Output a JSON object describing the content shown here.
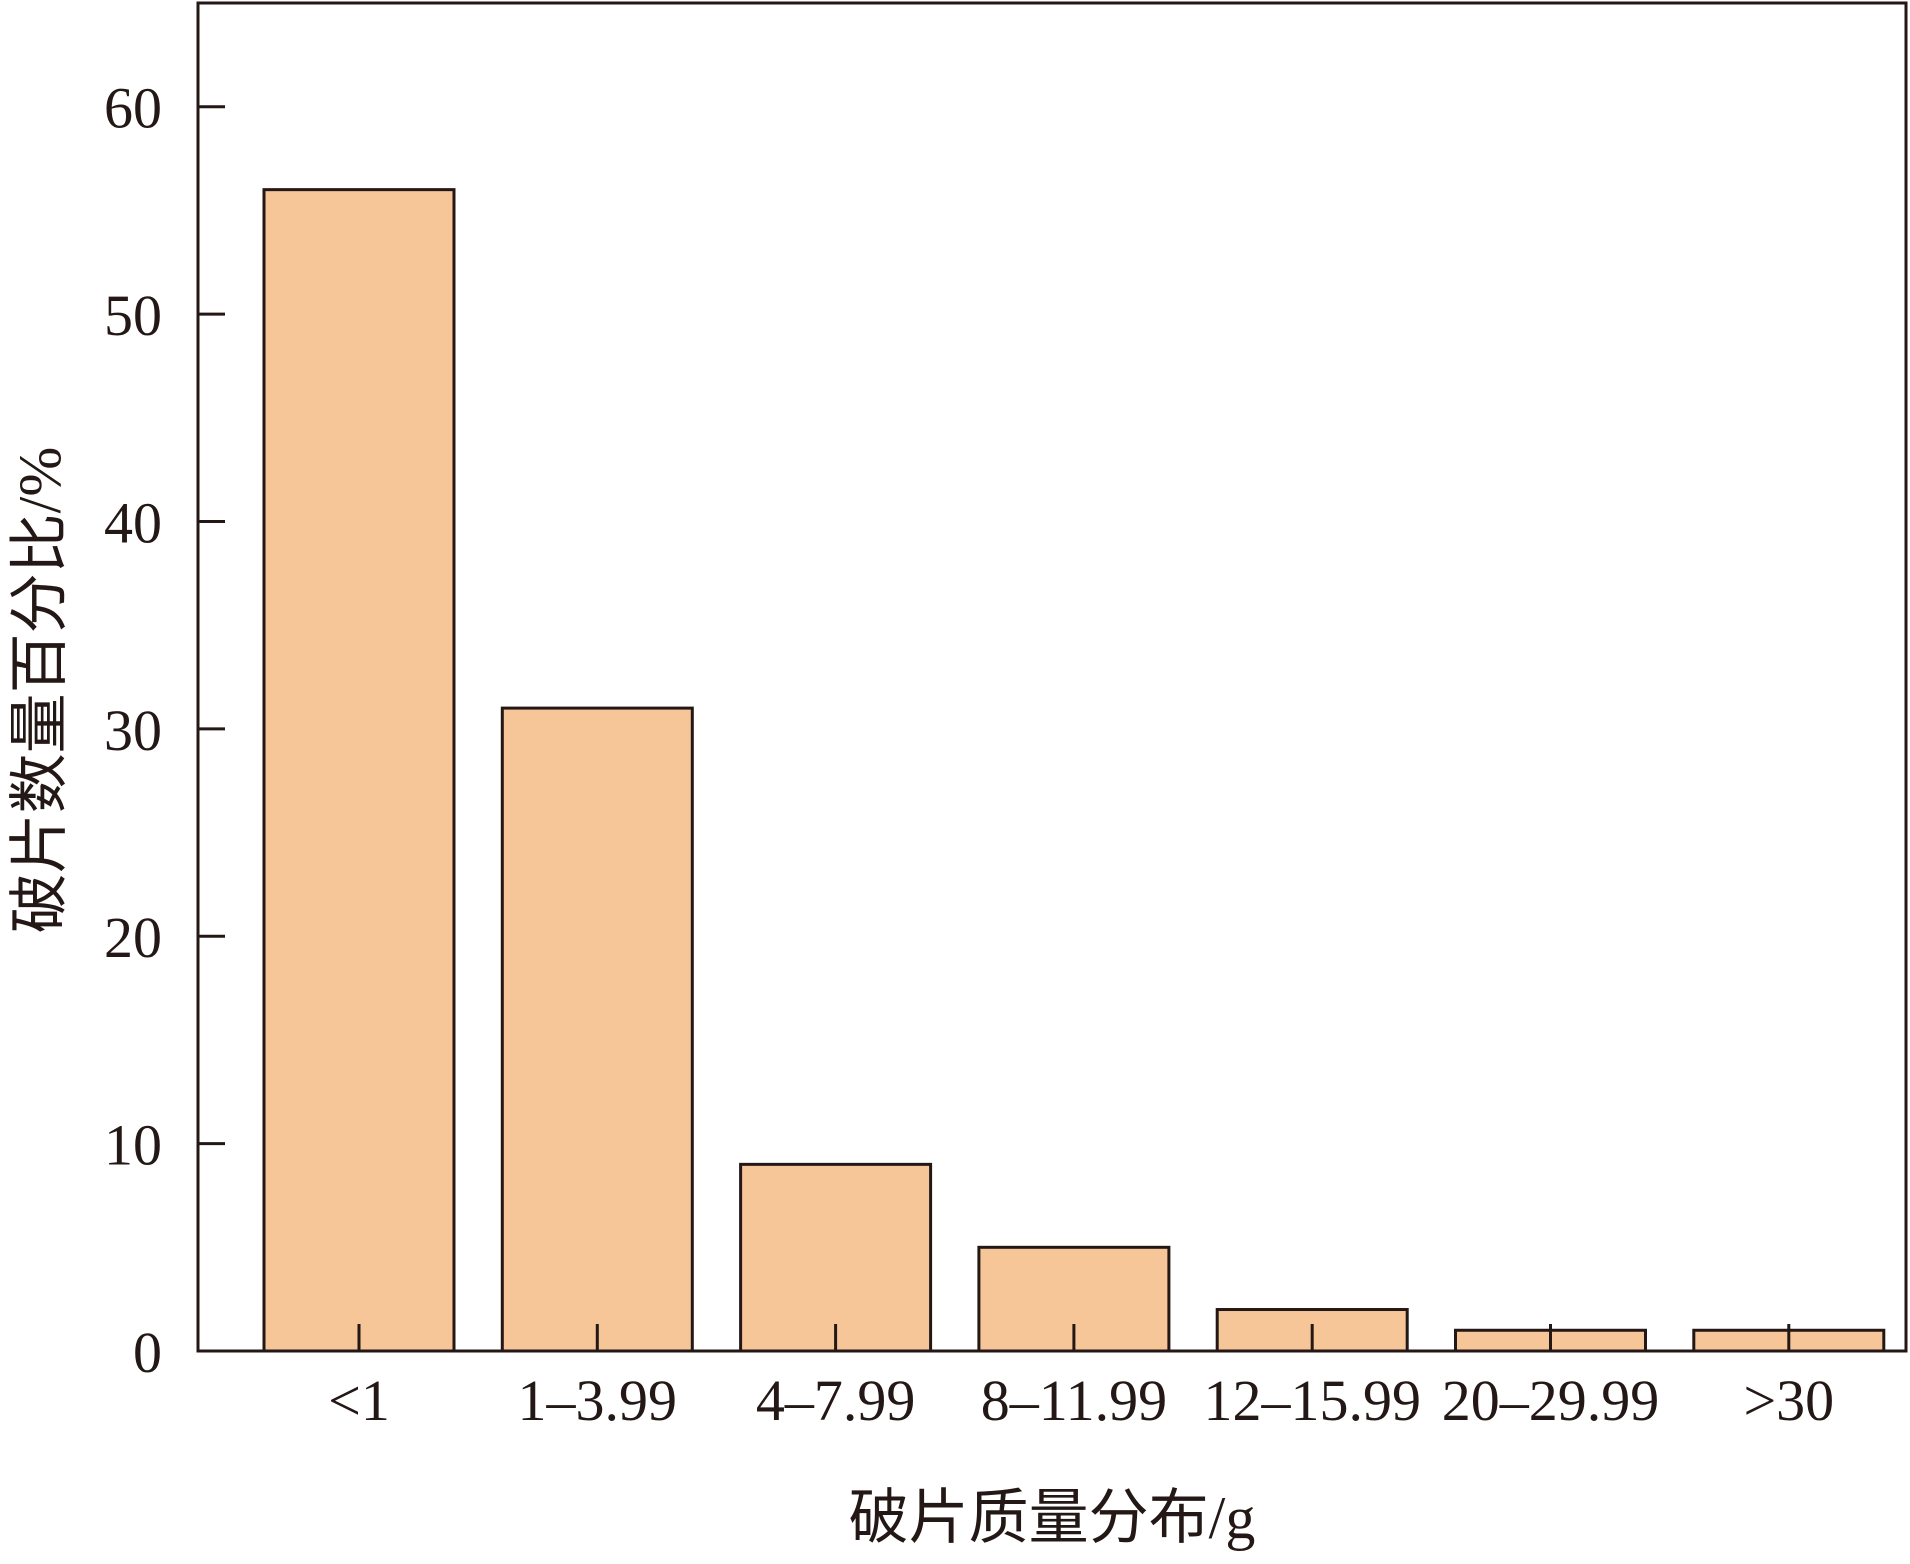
{
  "chart_data": {
    "type": "bar",
    "categories": [
      "<1",
      "1–3.99",
      "4–7.99",
      "8–11.99",
      "12–15.99",
      "20–29.99",
      ">30"
    ],
    "values": [
      56,
      31,
      9,
      5,
      2,
      1,
      1
    ],
    "xlabel": "破片质量分布/g",
    "ylabel": "破片数量百分比/%",
    "ylim": [
      0,
      65
    ],
    "yticks": [
      0,
      10,
      20,
      30,
      40,
      50,
      60
    ],
    "grid": false,
    "legend": "none",
    "colors": {
      "bar_fill": "#f6c598",
      "bar_stroke": "#231815",
      "axis": "#231815",
      "text": "#231815"
    }
  }
}
